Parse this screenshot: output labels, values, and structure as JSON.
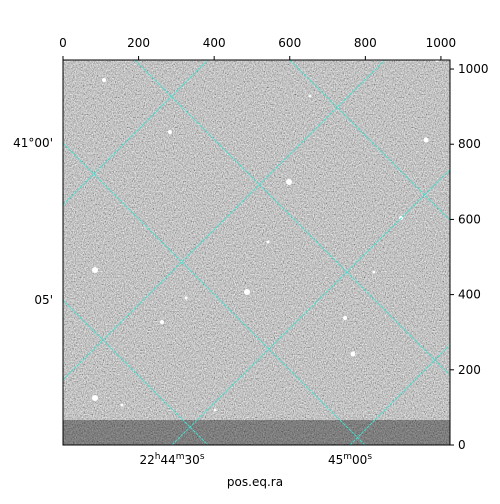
{
  "chart_data": {
    "type": "image",
    "xlim": [
      0,
      1024
    ],
    "xticks": [
      0,
      200,
      400,
      600,
      800,
      1000
    ],
    "ylim": [
      0,
      1024
    ],
    "yticks": [
      0,
      200,
      400,
      600,
      800,
      1000
    ],
    "xlabel": "pos.eq.ra",
    "dec_ticks": [
      "41°00'",
      "05'"
    ],
    "ra_ticks": [
      [
        {
          "text": "22"
        },
        {
          "text": "h",
          "sup": true
        },
        {
          "text": "44"
        },
        {
          "text": "m",
          "sup": true
        },
        {
          "text": "30"
        },
        {
          "text": "s",
          "sup": true
        }
      ],
      [
        {
          "text": "45"
        },
        {
          "text": "m",
          "sup": true
        },
        {
          "text": "00"
        },
        {
          "text": "s",
          "sup": true
        }
      ]
    ],
    "grid_color": "#40e0d0"
  }
}
